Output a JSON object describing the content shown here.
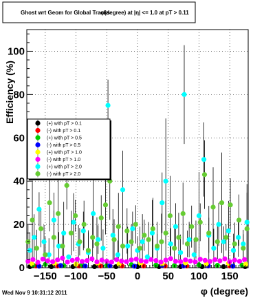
{
  "footer": {
    "timestamp": "Wed Nov  9 10:31:12 2011"
  },
  "chart_data": {
    "type": "scatter",
    "title": "Ghost wrt Geom for Global Tracks",
    "title_overlay": "φ(degree) at |η| <= 1.0 at pT > 0.11",
    "xlabel": "φ (degree)",
    "ylabel": "Efficiency (%)",
    "xlim": [
      -180,
      180
    ],
    "ylim": [
      0,
      110
    ],
    "xticks": [
      -150,
      -100,
      -50,
      0,
      50,
      100,
      150
    ],
    "yticks": [
      0,
      20,
      40,
      60,
      80,
      100
    ],
    "grid": true,
    "legend_position": "top-left",
    "series": [
      {
        "name": "(+) with pT > 0.1",
        "color": "#000000",
        "points": [
          [
            -175,
            0.5
          ],
          [
            -140,
            0.5
          ],
          [
            -105,
            0.5
          ],
          [
            -70,
            0.5
          ],
          [
            -35,
            0.5
          ],
          [
            0,
            0.5
          ],
          [
            35,
            0.5
          ],
          [
            70,
            0.5
          ],
          [
            105,
            0.5
          ],
          [
            140,
            0.5
          ],
          [
            175,
            0.5
          ]
        ]
      },
      {
        "name": "(-) with pT > 0.1",
        "color": "#ff0000",
        "points": [
          [
            -165,
            0.8
          ],
          [
            -130,
            0.8
          ],
          [
            -95,
            0.8
          ],
          [
            -60,
            0.8
          ],
          [
            -25,
            0.8
          ],
          [
            10,
            0.8
          ],
          [
            45,
            0.8
          ],
          [
            80,
            0.8
          ],
          [
            115,
            0.8
          ],
          [
            150,
            0.8
          ]
        ]
      },
      {
        "name": "(+) with pT > 0.5",
        "color": "#00cc00",
        "points": [
          [
            -170,
            1.2
          ],
          [
            -150,
            1.5
          ],
          [
            -120,
            1.0
          ],
          [
            -90,
            1.3
          ],
          [
            -50,
            1.1
          ],
          [
            -10,
            1.4
          ],
          [
            30,
            1.2
          ],
          [
            60,
            1.0
          ],
          [
            100,
            1.3
          ],
          [
            130,
            1.1
          ],
          [
            170,
            1.2
          ]
        ]
      },
      {
        "name": "(-) with pT > 0.5",
        "color": "#0000ff",
        "points": [
          [
            -160,
            0.7
          ],
          [
            -125,
            1.0
          ],
          [
            -85,
            0.8
          ],
          [
            -45,
            0.9
          ],
          [
            -5,
            0.7
          ],
          [
            40,
            1.0
          ],
          [
            75,
            0.8
          ],
          [
            115,
            0.9
          ],
          [
            155,
            0.7
          ]
        ]
      },
      {
        "name": "(+) with pT > 1.0",
        "color": "#ffff00",
        "points": [
          [
            -172,
            1.8
          ],
          [
            -135,
            2.0
          ],
          [
            -100,
            1.6
          ],
          [
            -65,
            2.1
          ],
          [
            -30,
            1.7
          ],
          [
            5,
            2.0
          ],
          [
            40,
            1.8
          ],
          [
            78,
            2.2
          ],
          [
            112,
            1.7
          ],
          [
            148,
            2.0
          ],
          [
            176,
            1.6
          ]
        ]
      },
      {
        "name": "(-) with pT > 1.0",
        "color": "#ff00ff",
        "points": [
          [
            -178,
            3.0
          ],
          [
            -170,
            3.8
          ],
          [
            -162,
            2.5
          ],
          [
            -154,
            4.0
          ],
          [
            -146,
            3.2
          ],
          [
            -138,
            2.8
          ],
          [
            -130,
            3.6
          ],
          [
            -122,
            4.4
          ],
          [
            -114,
            2.6
          ],
          [
            -106,
            3.4
          ],
          [
            -98,
            3.9
          ],
          [
            -90,
            2.9
          ],
          [
            -82,
            3.3
          ],
          [
            -74,
            4.1
          ],
          [
            -66,
            2.7
          ],
          [
            -58,
            3.5
          ],
          [
            -50,
            3.0
          ],
          [
            -42,
            2.6
          ],
          [
            -34,
            3.7
          ],
          [
            -26,
            3.1
          ],
          [
            -18,
            2.8
          ],
          [
            -10,
            3.6
          ],
          [
            -2,
            4.0
          ],
          [
            6,
            3.2
          ],
          [
            14,
            2.9
          ],
          [
            22,
            3.8
          ],
          [
            30,
            3.3
          ],
          [
            38,
            2.6
          ],
          [
            46,
            3.5
          ],
          [
            54,
            4.2
          ],
          [
            62,
            3.0
          ],
          [
            70,
            2.8
          ],
          [
            78,
            3.6
          ],
          [
            86,
            3.1
          ],
          [
            94,
            2.7
          ],
          [
            102,
            3.9
          ],
          [
            110,
            3.4
          ],
          [
            118,
            2.9
          ],
          [
            126,
            3.7
          ],
          [
            134,
            3.2
          ],
          [
            142,
            4.1
          ],
          [
            150,
            2.8
          ],
          [
            158,
            3.5
          ],
          [
            166,
            3.0
          ],
          [
            174,
            3.8
          ]
        ]
      },
      {
        "name": "(+) with pT > 2.0",
        "color": "#00ffff",
        "points": [
          [
            -175,
            8
          ],
          [
            -168,
            14
          ],
          [
            -160,
            27
          ],
          [
            -152,
            12
          ],
          [
            -144,
            6
          ],
          [
            -136,
            22
          ],
          [
            -128,
            10
          ],
          [
            -120,
            16
          ],
          [
            -112,
            5
          ],
          [
            -104,
            21
          ],
          [
            -96,
            11
          ],
          [
            -88,
            17
          ],
          [
            -80,
            7
          ],
          [
            -72,
            25
          ],
          [
            -64,
            13
          ],
          [
            -56,
            9
          ],
          [
            -48,
            75
          ],
          [
            -40,
            15
          ],
          [
            -32,
            6
          ],
          [
            -24,
            36
          ],
          [
            -16,
            10
          ],
          [
            -8,
            18
          ],
          [
            0,
            8
          ],
          [
            8,
            12
          ],
          [
            16,
            5
          ],
          [
            24,
            16
          ],
          [
            32,
            9
          ],
          [
            40,
            30
          ],
          [
            46,
            40
          ],
          [
            54,
            11
          ],
          [
            62,
            19
          ],
          [
            70,
            7
          ],
          [
            76,
            80
          ],
          [
            84,
            13
          ],
          [
            92,
            6
          ],
          [
            100,
            24
          ],
          [
            108,
            50
          ],
          [
            116,
            15
          ],
          [
            124,
            9
          ],
          [
            132,
            20
          ],
          [
            140,
            12
          ],
          [
            148,
            17
          ],
          [
            156,
            8
          ],
          [
            164,
            14
          ],
          [
            172,
            11
          ],
          [
            178,
            21
          ]
        ]
      },
      {
        "name": "(-) with pT > 2.0",
        "color": "#66cc33",
        "points": [
          [
            -178,
            12
          ],
          [
            -171,
            22
          ],
          [
            -164,
            9
          ],
          [
            -157,
            18
          ],
          [
            -150,
            6
          ],
          [
            -143,
            30
          ],
          [
            -136,
            14
          ],
          [
            -129,
            25
          ],
          [
            -122,
            10
          ],
          [
            -115,
            38
          ],
          [
            -108,
            16
          ],
          [
            -101,
            24
          ],
          [
            -94,
            12
          ],
          [
            -87,
            20
          ],
          [
            -80,
            8
          ],
          [
            -73,
            14
          ],
          [
            -66,
            11
          ],
          [
            -59,
            23
          ],
          [
            -52,
            29
          ],
          [
            -45,
            40
          ],
          [
            -38,
            13
          ],
          [
            -31,
            19
          ],
          [
            -24,
            10
          ],
          [
            -17,
            17
          ],
          [
            -10,
            12
          ],
          [
            -3,
            20
          ],
          [
            4,
            9
          ],
          [
            11,
            15
          ],
          [
            18,
            13
          ],
          [
            25,
            18
          ],
          [
            32,
            10
          ],
          [
            39,
            12
          ],
          [
            46,
            16
          ],
          [
            53,
            24
          ],
          [
            60,
            9
          ],
          [
            67,
            14
          ],
          [
            74,
            25
          ],
          [
            81,
            11
          ],
          [
            88,
            19
          ],
          [
            95,
            13
          ],
          [
            102,
            21
          ],
          [
            109,
            43
          ],
          [
            116,
            16
          ],
          [
            123,
            28
          ],
          [
            130,
            12
          ],
          [
            137,
            30
          ],
          [
            144,
            14
          ],
          [
            151,
            29
          ],
          [
            158,
            11
          ],
          [
            165,
            22
          ],
          [
            172,
            9
          ],
          [
            178,
            18
          ]
        ]
      }
    ]
  }
}
